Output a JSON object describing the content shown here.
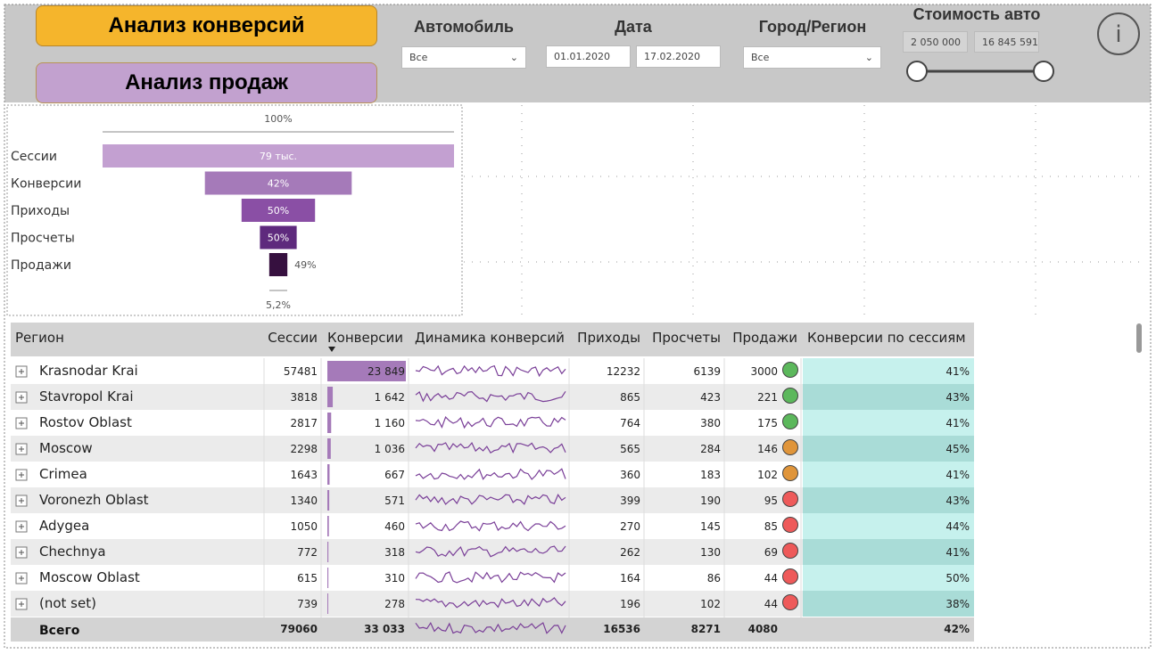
{
  "header": {
    "buttons": [
      "Анализ конверсий",
      "Анализ продаж"
    ],
    "filters": {
      "car": {
        "label": "Автомобиль",
        "value": "Все"
      },
      "date": {
        "label": "Дата",
        "from": "01.01.2020",
        "to": "17.02.2020"
      },
      "region": {
        "label": "Город/Регион",
        "value": "Все"
      },
      "price": {
        "label": "Стоимость авто",
        "min": "2 050 000",
        "max": "16 845 591"
      }
    }
  },
  "funnel": {
    "top_label": "100%",
    "bottom_label": "5,2%",
    "stages": [
      "Сессии",
      "Конверсии",
      "Приходы",
      "Просчеты",
      "Продажи"
    ],
    "values": [
      79060,
      33033,
      16536,
      8271,
      4080
    ],
    "labels": [
      "79 тыс.",
      "42%",
      "50%",
      "50%",
      "49%"
    ],
    "colors": [
      "#c3a0d1",
      "#a57ab9",
      "#8a4fa5",
      "#5e2a7d",
      "#36103f"
    ]
  },
  "table": {
    "columns": [
      "Регион",
      "Сессии",
      "Конверсии",
      "Динамика конверсий",
      "Приходы",
      "Просчеты",
      "Продажи",
      "Конверсии по сессиям"
    ],
    "rows": [
      {
        "region": "Krasnodar Krai",
        "sessions": 57481,
        "conversions": 23849,
        "conversions_label": "23 849",
        "arrivals": 12232,
        "calcs": 6139,
        "sales": 3000,
        "status": "#5cb85c",
        "rate": "41%"
      },
      {
        "region": "Stavropol Krai",
        "sessions": 3818,
        "conversions": 1642,
        "conversions_label": "1 642",
        "arrivals": 865,
        "calcs": 423,
        "sales": 221,
        "status": "#5cb85c",
        "rate": "43%"
      },
      {
        "region": "Rostov Oblast",
        "sessions": 2817,
        "conversions": 1160,
        "conversions_label": "1 160",
        "arrivals": 764,
        "calcs": 380,
        "sales": 175,
        "status": "#5cb85c",
        "rate": "41%"
      },
      {
        "region": "Moscow",
        "sessions": 2298,
        "conversions": 1036,
        "conversions_label": "1 036",
        "arrivals": 565,
        "calcs": 284,
        "sales": 146,
        "status": "#e0953a",
        "rate": "45%"
      },
      {
        "region": "Crimea",
        "sessions": 1643,
        "conversions": 667,
        "conversions_label": "667",
        "arrivals": 360,
        "calcs": 183,
        "sales": 102,
        "status": "#e0953a",
        "rate": "41%"
      },
      {
        "region": "Voronezh Oblast",
        "sessions": 1340,
        "conversions": 571,
        "conversions_label": "571",
        "arrivals": 399,
        "calcs": 190,
        "sales": 95,
        "status": "#ee5a5a",
        "rate": "43%"
      },
      {
        "region": "Adygea",
        "sessions": 1050,
        "conversions": 460,
        "conversions_label": "460",
        "arrivals": 270,
        "calcs": 145,
        "sales": 85,
        "status": "#ee5a5a",
        "rate": "44%"
      },
      {
        "region": "Chechnya",
        "sessions": 772,
        "conversions": 318,
        "conversions_label": "318",
        "arrivals": 262,
        "calcs": 130,
        "sales": 69,
        "status": "#ee5a5a",
        "rate": "41%"
      },
      {
        "region": "Moscow Oblast",
        "sessions": 615,
        "conversions": 310,
        "conversions_label": "310",
        "arrivals": 164,
        "calcs": 86,
        "sales": 44,
        "status": "#ee5a5a",
        "rate": "50%"
      },
      {
        "region": "(not set)",
        "sessions": 739,
        "conversions": 278,
        "conversions_label": "278",
        "arrivals": 196,
        "calcs": 102,
        "sales": 44,
        "status": "#ee5a5a",
        "rate": "38%"
      }
    ],
    "total": {
      "region": "Всего",
      "sessions": 79060,
      "conversions_label": "33 033",
      "arrivals": 16536,
      "calcs": 8271,
      "sales": 4080,
      "rate": "42%"
    }
  }
}
